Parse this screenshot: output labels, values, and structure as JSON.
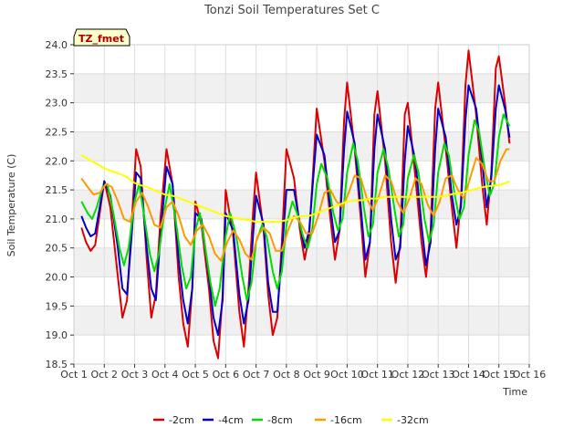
{
  "chart_data": {
    "type": "line",
    "title": "Tonzi Soil Temperatures Set C",
    "xlabel": "Time",
    "ylabel": "Soil Temperature (C)",
    "badge": "TZ_fmet",
    "xlim": [
      1,
      16
    ],
    "ylim": [
      18.5,
      24.0
    ],
    "x_ticks": [
      1,
      2,
      3,
      4,
      5,
      6,
      7,
      8,
      9,
      10,
      11,
      12,
      13,
      14,
      15,
      16
    ],
    "x_tick_labels": [
      "Oct 1",
      "Oct 2",
      "Oct 3",
      "Oct 4",
      "Oct 5",
      "Oct 6",
      "Oct 7",
      "Oct 8",
      "Oct 9",
      "Oct 10",
      "Oct 11",
      "Oct 12",
      "Oct 13",
      "Oct 14",
      "Oct 15",
      "Oct 16"
    ],
    "y_ticks": [
      18.5,
      19.0,
      19.5,
      20.0,
      20.5,
      21.0,
      21.5,
      22.0,
      22.5,
      23.0,
      23.5,
      24.0
    ],
    "y_tick_labels": [
      "18.5",
      "19.0",
      "19.5",
      "20.0",
      "20.5",
      "21.0",
      "21.5",
      "22.0",
      "22.5",
      "23.0",
      "23.5",
      "24.0"
    ],
    "grid": true,
    "legend_position": "bottom",
    "series": [
      {
        "name": "-2cm",
        "color": "#dd0000",
        "x": [
          1.25,
          1.4,
          1.55,
          1.7,
          1.85,
          2.0,
          2.2,
          2.45,
          2.6,
          2.75,
          2.9,
          3.05,
          3.2,
          3.4,
          3.55,
          3.7,
          3.85,
          4.05,
          4.25,
          4.45,
          4.6,
          4.75,
          4.9,
          5.0,
          5.2,
          5.45,
          5.6,
          5.75,
          5.9,
          6.0,
          6.25,
          6.45,
          6.6,
          6.75,
          6.9,
          7.0,
          7.25,
          7.4,
          7.55,
          7.7,
          7.85,
          8.0,
          8.25,
          8.45,
          8.6,
          8.75,
          8.9,
          9.0,
          9.25,
          9.45,
          9.6,
          9.75,
          9.9,
          10.0,
          10.25,
          10.45,
          10.6,
          10.75,
          10.9,
          11.0,
          11.25,
          11.45,
          11.6,
          11.75,
          11.9,
          12.0,
          12.25,
          12.45,
          12.6,
          12.75,
          12.9,
          13.0,
          13.25,
          13.45,
          13.6,
          13.75,
          13.9,
          14.0,
          14.25,
          14.45,
          14.6,
          14.75,
          14.9,
          15.0,
          15.2,
          15.35
        ],
        "y": [
          20.85,
          20.6,
          20.45,
          20.55,
          21.1,
          21.65,
          21.2,
          20.0,
          19.3,
          19.6,
          20.9,
          22.2,
          21.9,
          20.3,
          19.3,
          19.7,
          21.0,
          22.2,
          21.6,
          20.0,
          19.2,
          18.8,
          19.8,
          21.3,
          20.9,
          19.8,
          18.9,
          18.6,
          19.7,
          21.5,
          20.7,
          19.4,
          18.8,
          19.8,
          21.1,
          21.8,
          20.8,
          19.7,
          19.0,
          19.3,
          20.6,
          22.2,
          21.7,
          20.8,
          20.3,
          20.7,
          22.0,
          22.9,
          22.0,
          21.0,
          20.3,
          20.8,
          22.7,
          23.35,
          22.2,
          21.0,
          20.0,
          20.6,
          22.8,
          23.2,
          22.0,
          20.6,
          19.9,
          20.6,
          22.8,
          23.0,
          21.7,
          20.6,
          20.0,
          20.8,
          22.9,
          23.35,
          22.2,
          21.2,
          20.5,
          21.3,
          23.3,
          23.9,
          22.8,
          21.6,
          20.9,
          21.8,
          23.6,
          23.8,
          23.0,
          22.3
        ]
      },
      {
        "name": "-4cm",
        "color": "#0000cc",
        "x": [
          1.25,
          1.4,
          1.55,
          1.7,
          1.85,
          2.0,
          2.2,
          2.45,
          2.6,
          2.75,
          2.9,
          3.05,
          3.2,
          3.4,
          3.55,
          3.7,
          3.85,
          4.05,
          4.25,
          4.45,
          4.6,
          4.75,
          4.9,
          5.0,
          5.2,
          5.45,
          5.6,
          5.75,
          5.9,
          6.0,
          6.25,
          6.45,
          6.6,
          6.75,
          6.9,
          7.0,
          7.25,
          7.4,
          7.55,
          7.7,
          7.85,
          8.0,
          8.25,
          8.45,
          8.6,
          8.75,
          8.9,
          9.0,
          9.25,
          9.45,
          9.6,
          9.75,
          9.9,
          10.0,
          10.25,
          10.45,
          10.6,
          10.75,
          10.9,
          11.0,
          11.25,
          11.45,
          11.6,
          11.75,
          11.9,
          12.0,
          12.25,
          12.45,
          12.6,
          12.75,
          12.9,
          13.0,
          13.25,
          13.45,
          13.6,
          13.75,
          13.9,
          14.0,
          14.25,
          14.45,
          14.6,
          14.75,
          14.9,
          15.0,
          15.2,
          15.35
        ],
        "y": [
          21.05,
          20.85,
          20.7,
          20.75,
          21.2,
          21.65,
          21.4,
          20.5,
          19.8,
          19.7,
          20.7,
          21.8,
          21.7,
          20.5,
          19.8,
          19.6,
          20.7,
          21.9,
          21.6,
          20.3,
          19.6,
          19.2,
          19.8,
          21.1,
          21.0,
          20.0,
          19.3,
          19.0,
          19.6,
          21.1,
          20.8,
          19.7,
          19.2,
          19.6,
          20.7,
          21.4,
          20.9,
          19.9,
          19.4,
          19.4,
          20.4,
          21.5,
          21.5,
          20.9,
          20.5,
          20.8,
          21.8,
          22.45,
          22.1,
          21.2,
          20.6,
          20.8,
          22.2,
          22.85,
          22.3,
          21.2,
          20.3,
          20.6,
          22.2,
          22.8,
          22.2,
          21.0,
          20.3,
          20.5,
          22.0,
          22.6,
          22.0,
          20.9,
          20.2,
          20.6,
          22.2,
          22.9,
          22.4,
          21.4,
          20.9,
          21.2,
          22.7,
          23.3,
          22.9,
          22.0,
          21.2,
          21.7,
          22.9,
          23.3,
          22.9,
          22.4
        ]
      },
      {
        "name": "-8cm",
        "color": "#00dd00",
        "x": [
          1.25,
          1.45,
          1.6,
          1.75,
          1.95,
          2.1,
          2.3,
          2.5,
          2.65,
          2.8,
          3.0,
          3.15,
          3.3,
          3.5,
          3.65,
          3.8,
          4.0,
          4.15,
          4.35,
          4.55,
          4.7,
          4.85,
          5.0,
          5.15,
          5.3,
          5.5,
          5.65,
          5.8,
          6.0,
          6.15,
          6.35,
          6.55,
          6.7,
          6.85,
          7.0,
          7.2,
          7.35,
          7.55,
          7.7,
          7.85,
          8.0,
          8.2,
          8.35,
          8.55,
          8.7,
          8.85,
          9.0,
          9.15,
          9.35,
          9.55,
          9.7,
          9.85,
          10.0,
          10.2,
          10.35,
          10.55,
          10.7,
          10.85,
          11.0,
          11.2,
          11.35,
          11.55,
          11.7,
          11.85,
          12.0,
          12.2,
          12.35,
          12.55,
          12.7,
          12.85,
          13.0,
          13.2,
          13.35,
          13.55,
          13.7,
          13.85,
          14.0,
          14.2,
          14.35,
          14.55,
          14.7,
          14.85,
          15.0,
          15.15,
          15.35
        ],
        "y": [
          21.3,
          21.1,
          21.0,
          21.2,
          21.55,
          21.6,
          21.1,
          20.5,
          20.2,
          20.5,
          21.3,
          21.6,
          21.1,
          20.4,
          20.1,
          20.4,
          21.2,
          21.6,
          21.0,
          20.2,
          19.8,
          20.0,
          20.8,
          21.1,
          20.6,
          19.9,
          19.5,
          19.8,
          20.7,
          21.1,
          20.7,
          20.0,
          19.6,
          19.9,
          20.6,
          20.9,
          20.7,
          20.1,
          19.8,
          20.1,
          20.9,
          21.3,
          21.1,
          20.7,
          20.5,
          20.8,
          21.6,
          21.95,
          21.7,
          21.1,
          20.8,
          21.0,
          21.8,
          22.3,
          22.0,
          21.2,
          20.7,
          20.9,
          21.8,
          22.2,
          21.9,
          21.2,
          20.7,
          20.9,
          21.7,
          22.1,
          21.8,
          21.0,
          20.6,
          20.9,
          21.8,
          22.3,
          22.1,
          21.4,
          21.0,
          21.2,
          22.1,
          22.7,
          22.5,
          21.8,
          21.4,
          21.6,
          22.4,
          22.8,
          22.6
        ]
      },
      {
        "name": "-16cm",
        "color": "#ff9900",
        "x": [
          1.25,
          1.45,
          1.65,
          1.85,
          2.05,
          2.25,
          2.45,
          2.65,
          2.85,
          3.05,
          3.25,
          3.45,
          3.65,
          3.85,
          4.05,
          4.25,
          4.45,
          4.65,
          4.85,
          5.05,
          5.25,
          5.45,
          5.65,
          5.85,
          6.05,
          6.25,
          6.45,
          6.65,
          6.85,
          7.05,
          7.25,
          7.45,
          7.65,
          7.85,
          8.05,
          8.25,
          8.45,
          8.65,
          8.85,
          9.05,
          9.25,
          9.45,
          9.65,
          9.85,
          10.05,
          10.25,
          10.45,
          10.65,
          10.85,
          11.05,
          11.25,
          11.45,
          11.65,
          11.85,
          12.05,
          12.25,
          12.45,
          12.65,
          12.85,
          13.05,
          13.25,
          13.45,
          13.65,
          13.85,
          14.05,
          14.25,
          14.45,
          14.65,
          14.85,
          15.05,
          15.25,
          15.35
        ],
        "y": [
          21.7,
          21.55,
          21.42,
          21.45,
          21.6,
          21.55,
          21.3,
          21.0,
          20.95,
          21.3,
          21.45,
          21.2,
          20.9,
          20.85,
          21.2,
          21.3,
          21.05,
          20.7,
          20.55,
          20.8,
          20.9,
          20.7,
          20.4,
          20.28,
          20.6,
          20.8,
          20.65,
          20.4,
          20.3,
          20.7,
          20.85,
          20.75,
          20.45,
          20.45,
          20.8,
          21.05,
          20.95,
          20.75,
          20.75,
          21.05,
          21.45,
          21.5,
          21.3,
          21.2,
          21.45,
          21.75,
          21.7,
          21.35,
          21.15,
          21.4,
          21.75,
          21.65,
          21.3,
          21.1,
          21.35,
          21.7,
          21.6,
          21.25,
          21.05,
          21.3,
          21.7,
          21.75,
          21.5,
          21.35,
          21.7,
          22.05,
          21.95,
          21.65,
          21.65,
          22.0,
          22.2,
          22.2
        ]
      },
      {
        "name": "-32cm",
        "color": "#ffff00",
        "x": [
          1.25,
          1.5,
          1.75,
          2.0,
          2.25,
          2.5,
          2.75,
          3.0,
          3.25,
          3.5,
          3.75,
          4.0,
          4.25,
          4.5,
          4.75,
          5.0,
          5.25,
          5.5,
          5.75,
          6.0,
          6.25,
          6.5,
          6.75,
          7.0,
          7.25,
          7.5,
          7.75,
          8.0,
          8.25,
          8.5,
          8.75,
          9.0,
          9.25,
          9.5,
          9.75,
          10.0,
          10.25,
          10.5,
          10.75,
          11.0,
          11.25,
          11.5,
          11.75,
          12.0,
          12.25,
          12.5,
          12.75,
          13.0,
          13.25,
          13.5,
          13.75,
          14.0,
          14.25,
          14.5,
          14.75,
          15.0,
          15.25,
          15.35
        ],
        "y": [
          22.1,
          22.02,
          21.95,
          21.87,
          21.82,
          21.78,
          21.72,
          21.62,
          21.57,
          21.53,
          21.47,
          21.42,
          21.4,
          21.35,
          21.3,
          21.25,
          21.2,
          21.15,
          21.1,
          21.05,
          21.02,
          21.0,
          20.98,
          20.95,
          20.95,
          20.95,
          20.95,
          20.98,
          21.02,
          21.05,
          21.05,
          21.1,
          21.15,
          21.2,
          21.25,
          21.3,
          21.32,
          21.32,
          21.35,
          21.35,
          21.38,
          21.38,
          21.38,
          21.38,
          21.38,
          21.38,
          21.38,
          21.38,
          21.4,
          21.43,
          21.45,
          21.48,
          21.52,
          21.55,
          21.57,
          21.58,
          21.62,
          21.65
        ]
      }
    ]
  }
}
